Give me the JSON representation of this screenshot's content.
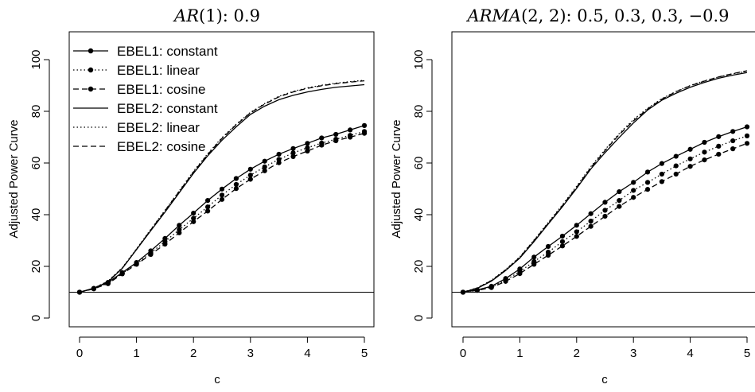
{
  "chart_data": [
    {
      "type": "line",
      "title": {
        "italic": "AR",
        "rest": "(1): 0.9"
      },
      "xlabel": "c",
      "ylabel": "Adjusted Power Curve",
      "xlim": [
        0,
        5
      ],
      "ylim": [
        0,
        100
      ],
      "xticks": [
        "0",
        "1",
        "2",
        "3",
        "4",
        "5"
      ],
      "yticks": [
        "0",
        "20",
        "40",
        "60",
        "80",
        "100"
      ],
      "reference_line_y": 10,
      "x": [
        0,
        0.25,
        0.5,
        0.75,
        1,
        1.25,
        1.5,
        1.75,
        2,
        2.25,
        2.5,
        2.75,
        3,
        3.25,
        3.5,
        3.75,
        4,
        4.25,
        4.5,
        4.75,
        5
      ],
      "legend": {
        "placement": "top-left",
        "entries": [
          "EBEL1: constant",
          "EBEL1: linear",
          "EBEL1: cosine",
          "EBEL2: constant",
          "EBEL2: linear",
          "EBEL2: cosine"
        ]
      },
      "series": [
        {
          "name": "EBEL1: constant",
          "style": "solid",
          "marker": true,
          "values": [
            10,
            11.5,
            13.8,
            17.6,
            21.5,
            26.0,
            30.8,
            35.9,
            40.6,
            45.5,
            49.9,
            54.0,
            57.6,
            60.7,
            63.4,
            65.6,
            67.6,
            69.7,
            71.1,
            72.8,
            74.5
          ]
        },
        {
          "name": "EBEL1: linear",
          "style": "dotted",
          "marker": true,
          "values": [
            10,
            11.4,
            13.5,
            17.3,
            21.0,
            25.2,
            29.6,
            34.2,
            38.6,
            43.0,
            47.6,
            51.7,
            55.3,
            58.5,
            61.4,
            63.9,
            65.9,
            67.7,
            69.2,
            70.7,
            72.2
          ]
        },
        {
          "name": "EBEL1: cosine",
          "style": "dashed",
          "marker": true,
          "values": [
            10,
            11.3,
            13.3,
            17.1,
            20.8,
            24.6,
            28.6,
            33.0,
            37.3,
            41.4,
            45.9,
            50.1,
            53.7,
            57.0,
            60.1,
            62.5,
            64.6,
            66.9,
            68.6,
            70.0,
            71.5
          ]
        },
        {
          "name": "EBEL2: constant",
          "style": "solid",
          "marker": false,
          "values": [
            10,
            11.5,
            14.0,
            19.2,
            26.5,
            33.8,
            41.0,
            48.5,
            56.0,
            62.8,
            68.8,
            74.0,
            78.8,
            82.0,
            84.5,
            86.2,
            87.5,
            88.5,
            89.3,
            89.8,
            90.3
          ]
        },
        {
          "name": "EBEL2: linear",
          "style": "dotted",
          "marker": false,
          "values": [
            10,
            11.6,
            14.3,
            19.5,
            26.8,
            34.3,
            41.7,
            49.2,
            56.8,
            63.6,
            69.8,
            75.0,
            79.6,
            83.0,
            85.8,
            87.7,
            89.1,
            90.1,
            90.9,
            91.5,
            92.0
          ]
        },
        {
          "name": "EBEL2: cosine",
          "style": "dashed",
          "marker": false,
          "values": [
            10,
            11.5,
            14.2,
            19.3,
            26.6,
            34.1,
            41.5,
            49.0,
            56.5,
            63.3,
            69.5,
            74.8,
            79.4,
            82.8,
            85.6,
            87.5,
            88.9,
            89.9,
            90.7,
            91.3,
            91.8
          ]
        }
      ]
    },
    {
      "type": "line",
      "title": {
        "italic": "ARMA",
        "rest": "(2, 2): 0.5, 0.3, 0.3, −0.9"
      },
      "xlabel": "c",
      "ylabel": "Adjusted Power Curve",
      "xlim": [
        0,
        5
      ],
      "ylim": [
        0,
        100
      ],
      "xticks": [
        "0",
        "1",
        "2",
        "3",
        "4",
        "5"
      ],
      "yticks": [
        "0",
        "20",
        "40",
        "60",
        "80",
        "100"
      ],
      "reference_line_y": 10,
      "x": [
        0,
        0.25,
        0.5,
        0.75,
        1,
        1.25,
        1.5,
        1.75,
        2,
        2.25,
        2.5,
        2.75,
        3,
        3.25,
        3.5,
        3.75,
        4,
        4.25,
        4.5,
        4.75,
        5
      ],
      "series": [
        {
          "name": "EBEL1: constant",
          "style": "solid",
          "marker": true,
          "values": [
            10,
            10.9,
            12.3,
            15.3,
            19.0,
            23.6,
            27.7,
            31.7,
            35.9,
            40.4,
            44.8,
            48.9,
            52.5,
            56.5,
            59.8,
            62.6,
            65.3,
            68.0,
            70.2,
            72.2,
            74.0
          ]
        },
        {
          "name": "EBEL1: linear",
          "style": "dotted",
          "marker": true,
          "values": [
            10,
            10.8,
            12.0,
            14.7,
            18.0,
            21.9,
            25.5,
            29.6,
            33.4,
            37.5,
            41.7,
            45.5,
            49.4,
            52.5,
            55.7,
            58.9,
            61.6,
            64.2,
            66.5,
            68.6,
            70.5
          ]
        },
        {
          "name": "EBEL1: cosine",
          "style": "dashed",
          "marker": true,
          "values": [
            10,
            10.7,
            11.8,
            14.2,
            17.2,
            20.8,
            24.3,
            27.9,
            31.6,
            35.5,
            39.4,
            43.2,
            46.7,
            49.8,
            52.8,
            55.7,
            58.7,
            61.2,
            63.4,
            65.5,
            67.6
          ]
        },
        {
          "name": "EBEL2: constant",
          "style": "solid",
          "marker": false,
          "values": [
            10,
            11.5,
            14.3,
            18.4,
            23.2,
            29.6,
            36.4,
            43.1,
            50.2,
            57.7,
            64.0,
            69.9,
            75.5,
            80.5,
            84.3,
            87.0,
            89.3,
            91.2,
            92.8,
            94.0,
            95.0
          ]
        },
        {
          "name": "EBEL2: linear",
          "style": "dotted",
          "marker": false,
          "values": [
            10,
            11.7,
            14.6,
            18.8,
            23.7,
            30.2,
            37.0,
            43.8,
            51.0,
            58.6,
            65.2,
            71.4,
            76.8,
            81.2,
            84.9,
            87.7,
            90.0,
            91.8,
            93.3,
            94.5,
            95.5
          ]
        },
        {
          "name": "EBEL2: cosine",
          "style": "dashed",
          "marker": false,
          "values": [
            10,
            11.6,
            14.5,
            18.6,
            23.5,
            30.0,
            36.7,
            43.5,
            50.6,
            58.2,
            64.8,
            71.0,
            76.3,
            80.9,
            84.7,
            87.6,
            89.9,
            91.7,
            93.3,
            94.6,
            95.7
          ]
        }
      ]
    }
  ]
}
